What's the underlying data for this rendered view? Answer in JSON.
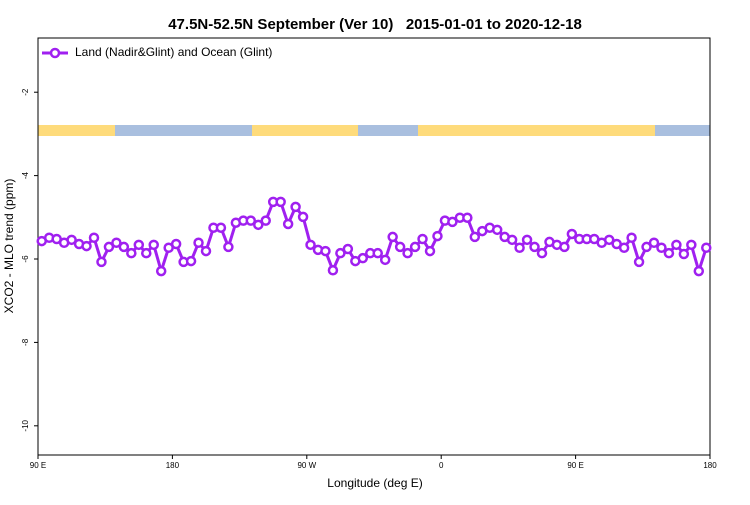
{
  "chart_data": {
    "type": "line",
    "title": "47.5N-52.5N September (Ver 10)   2015-01-01 to 2020-12-18",
    "xlabel": "Longitude (deg E)",
    "ylabel": "XCO2 - MLO trend (ppm)",
    "x": [
      92.5,
      97.5,
      102.5,
      107.5,
      112.5,
      117.5,
      122.5,
      127.5,
      132.5,
      137.5,
      142.5,
      147.5,
      152.5,
      157.5,
      162.5,
      167.5,
      172.5,
      177.5,
      182.5,
      187.5,
      192.5,
      197.5,
      202.5,
      207.5,
      212.5,
      217.5,
      222.5,
      227.5,
      232.5,
      237.5,
      242.5,
      247.5,
      252.5,
      257.5,
      262.5,
      267.5,
      272.5,
      277.5,
      282.5,
      287.5,
      292.5,
      297.5,
      302.5,
      307.5,
      312.5,
      317.5,
      322.5,
      327.5,
      332.5,
      337.5,
      342.5,
      347.5,
      352.5,
      357.5,
      362.5,
      367.5,
      372.5,
      377.5,
      382.5,
      387.5,
      392.5,
      397.5,
      402.5,
      407.5,
      412.5,
      417.5,
      422.5,
      427.5,
      432.5,
      437.5,
      442.5,
      447.5,
      452.5,
      457.5,
      462.5,
      467.5,
      472.5,
      477.5,
      482.5,
      487.5,
      492.5,
      497.5,
      502.5,
      507.5,
      512.5,
      517.5,
      522.5,
      527.5,
      532.5,
      537.5
    ],
    "series": [
      {
        "name": "Land (Nadir&Glint) and Ocean (Glint)",
        "color": "#a020f0",
        "values": [
          -5.57,
          -5.49,
          -5.52,
          -5.61,
          -5.54,
          -5.64,
          -5.69,
          -5.49,
          -6.07,
          -5.71,
          -5.61,
          -5.71,
          -5.86,
          -5.66,
          -5.86,
          -5.66,
          -6.29,
          -5.73,
          -5.64,
          -6.07,
          -6.05,
          -5.61,
          -5.81,
          -5.25,
          -5.25,
          -5.71,
          -5.13,
          -5.08,
          -5.08,
          -5.18,
          -5.08,
          -4.63,
          -4.63,
          -5.16,
          -4.75,
          -4.99,
          -5.66,
          -5.78,
          -5.81,
          -6.27,
          -5.86,
          -5.76,
          -6.05,
          -5.98,
          -5.86,
          -5.86,
          -6.02,
          -5.47,
          -5.71,
          -5.86,
          -5.71,
          -5.52,
          -5.81,
          -5.45,
          -5.08,
          -5.11,
          -5.01,
          -5.01,
          -5.47,
          -5.33,
          -5.25,
          -5.3,
          -5.47,
          -5.54,
          -5.73,
          -5.54,
          -5.71,
          -5.86,
          -5.59,
          -5.66,
          -5.71,
          -5.4,
          -5.52,
          -5.52,
          -5.52,
          -5.61,
          -5.54,
          -5.64,
          -5.73,
          -5.49,
          -6.07,
          -5.71,
          -5.61,
          -5.73,
          -5.86,
          -5.66,
          -5.88,
          -5.66,
          -6.29,
          -5.73
        ]
      }
    ],
    "xlim": [
      90,
      540
    ],
    "xticks": [
      {
        "value": 90,
        "label": "90 E"
      },
      180,
      {
        "value": 270,
        "label": "90 W"
      },
      {
        "value": 360,
        "label": "0"
      },
      {
        "value": 450,
        "label": "90 E"
      },
      {
        "value": 540,
        "label": "180"
      }
    ],
    "ylim": [
      -10.7,
      -0.7
    ],
    "yticks": [
      -2,
      -4,
      -6,
      -8,
      -10
    ],
    "legend": "upper left"
  }
}
